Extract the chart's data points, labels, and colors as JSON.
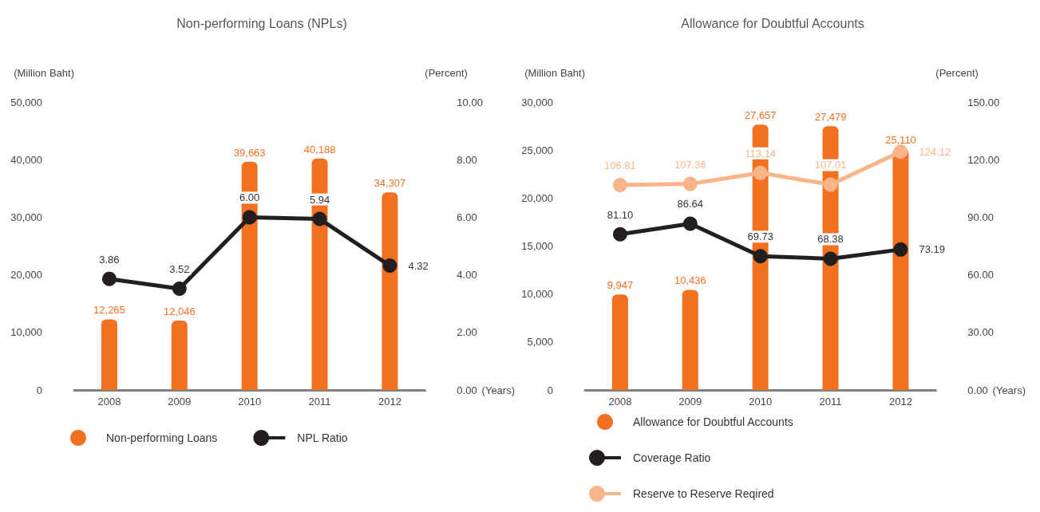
{
  "chart_data": [
    {
      "type": "bar",
      "title": "Non-performing Loans (NPLs)",
      "xlabel": "(Years)",
      "ylabel": "(Million Baht)",
      "y2label": "(Percent)",
      "categories": [
        "2008",
        "2009",
        "2010",
        "2011",
        "2012"
      ],
      "series": [
        {
          "name": "Non-performing Loans",
          "color": "#f37021",
          "values": [
            12265,
            12046,
            39663,
            40188,
            34307
          ],
          "value_labels": [
            "12,265",
            "12,046",
            "39,663",
            "40,188",
            "34,307"
          ]
        },
        {
          "name": "NPL Ratio",
          "type": "line",
          "axis": "y2",
          "color": "#231f20",
          "marker": "circle",
          "values": [
            3.86,
            3.52,
            6.0,
            5.94,
            4.32
          ],
          "value_labels": [
            "3.86",
            "3.52",
            "6.00",
            "5.94",
            "4.32"
          ]
        }
      ],
      "ylim": [
        0,
        50000
      ],
      "yticks": [
        0,
        {
          "value": 10000,
          "label": "10,000"
        },
        {
          "value": 20000,
          "label": "20,000"
        },
        {
          "value": 30000,
          "label": "30,000"
        },
        {
          "value": 40000,
          "label": "40,000"
        },
        {
          "value": 50000,
          "label": "50,000"
        }
      ],
      "y2lim": [
        0,
        10
      ],
      "y2ticks": [
        {
          "value": 0,
          "label": "0.00"
        },
        {
          "value": 2,
          "label": "2.00"
        },
        {
          "value": 4,
          "label": "4.00"
        },
        {
          "value": 6,
          "label": "6.00"
        },
        {
          "value": 8,
          "label": "8.00"
        },
        {
          "value": 10,
          "label": "10.00"
        }
      ],
      "grid": false,
      "legend": "bottom"
    },
    {
      "type": "bar",
      "title": "Allowance for Doubtful Accounts",
      "xlabel": "(Years)",
      "ylabel": "(Million Baht)",
      "y2label": "(Percent)",
      "categories": [
        "2008",
        "2009",
        "2010",
        "2011",
        "2012"
      ],
      "series": [
        {
          "name": "Allowance for Doubtful Accounts",
          "color": "#f37021",
          "values": [
            9947,
            10436,
            27657,
            27479,
            25110
          ],
          "value_labels": [
            "9,947",
            "10,436",
            "27,657",
            "27,479",
            "25,110"
          ]
        },
        {
          "name": "Coverage Ratio",
          "type": "line",
          "axis": "y2",
          "color": "#231f20",
          "marker": "circle",
          "values": [
            81.1,
            86.64,
            69.73,
            68.38,
            73.19
          ],
          "value_labels": [
            "81.10",
            "86.64",
            "69.73",
            "68.38",
            "73.19"
          ]
        },
        {
          "name": "Reserve to Reserve Reqired",
          "type": "line",
          "axis": "y2",
          "color": "#f9b48a",
          "marker": "circle",
          "values": [
            106.81,
            107.36,
            113.14,
            107.01,
            124.12
          ],
          "value_labels": [
            "106.81",
            "107.36",
            "113.14",
            "107.01",
            "124.12"
          ]
        }
      ],
      "ylim": [
        0,
        30000
      ],
      "yticks": [
        0,
        {
          "value": 5000,
          "label": "5,000"
        },
        {
          "value": 10000,
          "label": "10,000"
        },
        {
          "value": 15000,
          "label": "15,000"
        },
        {
          "value": 20000,
          "label": "20,000"
        },
        {
          "value": 25000,
          "label": "25,000"
        },
        {
          "value": 30000,
          "label": "30,000"
        }
      ],
      "y2lim": [
        0,
        150
      ],
      "y2ticks": [
        {
          "value": 0,
          "label": "0.00"
        },
        {
          "value": 30,
          "label": "30.00"
        },
        {
          "value": 60,
          "label": "60.00"
        },
        {
          "value": 90,
          "label": "90.00"
        },
        {
          "value": 120,
          "label": "120.00"
        },
        {
          "value": 150,
          "label": "150.00"
        }
      ],
      "grid": false,
      "legend": "bottom"
    }
  ]
}
